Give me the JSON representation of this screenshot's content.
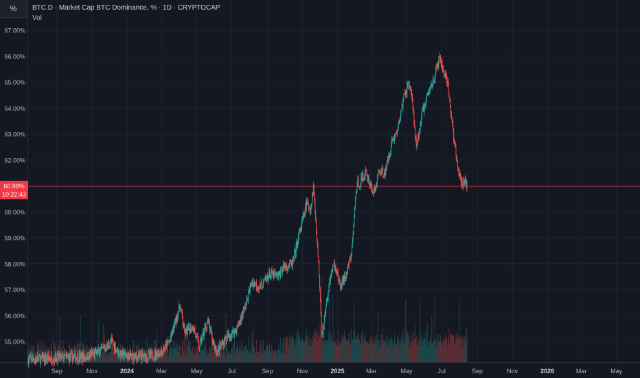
{
  "header": {
    "symbol_box": "%",
    "title": "BTC.D · Market Cap BTC Dominance, % · 1D · CRYPTOCAP",
    "volume_label": "Vol"
  },
  "last_price": {
    "value": "60.98%",
    "countdown": "10:22:43"
  },
  "colors": {
    "background": "#141823",
    "up": "#26a69a",
    "down": "#ef5350",
    "price_line": "#f23645",
    "grid": "#1f2430"
  },
  "chart_data": {
    "type": "candlestick",
    "title": "BTC.D · Market Cap BTC Dominance, % · 1D · CRYPTOCAP",
    "y_axis_side": "left",
    "y_ticks": [
      "67.00%",
      "66.00%",
      "65.00%",
      "64.00%",
      "63.00%",
      "62.00%",
      "61.00%",
      "60.00%",
      "59.00%",
      "58.00%",
      "57.00%",
      "56.00%",
      "55.00%"
    ],
    "y_tick_values": [
      67,
      66,
      65,
      64,
      63,
      62,
      61,
      60,
      59,
      58,
      57,
      56,
      55
    ],
    "ylim": [
      54.3,
      67.6
    ],
    "x_ticks": [
      "Sep",
      "Nov",
      "2024",
      "Mar",
      "May",
      "Jul",
      "Sep",
      "Nov",
      "2025",
      "Mar",
      "May",
      "Jul",
      "Sep",
      "Nov",
      "2026",
      "Mar",
      "May"
    ],
    "x_tick_dates": [
      "2023-09-01",
      "2023-11-01",
      "2024-01-01",
      "2024-03-01",
      "2024-05-01",
      "2024-07-01",
      "2024-09-01",
      "2024-11-01",
      "2025-01-01",
      "2025-03-01",
      "2025-05-01",
      "2025-07-01",
      "2025-09-01",
      "2025-11-01",
      "2026-01-01",
      "2026-03-01",
      "2026-05-01"
    ],
    "bold_x_ticks": [
      "2024",
      "2025",
      "2026"
    ],
    "xlim": [
      "2023-07-13",
      "2026-06-11"
    ],
    "last_value": 60.98,
    "series": [
      {
        "value_points": [
          [
            "2023-07-13",
            54.3
          ],
          [
            "2023-08-15",
            54.35
          ],
          [
            "2023-09-20",
            54.4
          ],
          [
            "2023-10-20",
            54.4
          ],
          [
            "2023-11-15",
            54.6
          ],
          [
            "2023-12-05",
            55.0
          ],
          [
            "2023-12-20",
            54.5
          ],
          [
            "2024-01-15",
            54.4
          ],
          [
            "2024-02-10",
            54.45
          ],
          [
            "2024-03-01",
            54.6
          ],
          [
            "2024-03-15",
            55.0
          ],
          [
            "2024-04-02",
            56.4
          ],
          [
            "2024-04-10",
            55.3
          ],
          [
            "2024-04-25",
            55.6
          ],
          [
            "2024-05-05",
            54.8
          ],
          [
            "2024-05-20",
            55.8
          ],
          [
            "2024-05-28",
            55.1
          ],
          [
            "2024-06-05",
            54.6
          ],
          [
            "2024-06-20",
            55.1
          ],
          [
            "2024-07-10",
            55.5
          ],
          [
            "2024-07-25",
            56.4
          ],
          [
            "2024-08-05",
            57.3
          ],
          [
            "2024-08-20",
            57.1
          ],
          [
            "2024-09-05",
            57.6
          ],
          [
            "2024-09-20",
            57.5
          ],
          [
            "2024-09-30",
            57.9
          ],
          [
            "2024-10-15",
            58.0
          ],
          [
            "2024-10-25",
            59.0
          ],
          [
            "2024-11-08",
            60.3
          ],
          [
            "2024-11-15",
            60.1
          ],
          [
            "2024-11-20",
            61.0
          ],
          [
            "2024-11-25",
            59.4
          ],
          [
            "2024-11-30",
            57.6
          ],
          [
            "2024-12-05",
            55.3
          ],
          [
            "2024-12-10",
            56.0
          ],
          [
            "2024-12-20",
            57.6
          ],
          [
            "2024-12-28",
            58.0
          ],
          [
            "2025-01-05",
            57.1
          ],
          [
            "2025-01-15",
            57.5
          ],
          [
            "2025-01-25",
            58.3
          ],
          [
            "2025-02-03",
            61.0
          ],
          [
            "2025-02-10",
            61.2
          ],
          [
            "2025-02-20",
            61.5
          ],
          [
            "2025-03-05",
            60.7
          ],
          [
            "2025-03-15",
            61.6
          ],
          [
            "2025-03-25",
            61.5
          ],
          [
            "2025-04-05",
            62.7
          ],
          [
            "2025-04-15",
            63.1
          ],
          [
            "2025-04-25",
            64.3
          ],
          [
            "2025-05-05",
            65.0
          ],
          [
            "2025-05-10",
            64.5
          ],
          [
            "2025-05-18",
            62.4
          ],
          [
            "2025-05-28",
            63.8
          ],
          [
            "2025-06-10",
            64.7
          ],
          [
            "2025-06-20",
            65.3
          ],
          [
            "2025-06-27",
            65.9
          ],
          [
            "2025-07-05",
            65.4
          ],
          [
            "2025-07-12",
            64.8
          ],
          [
            "2025-07-20",
            63.3
          ],
          [
            "2025-07-28",
            61.8
          ],
          [
            "2025-08-05",
            61.0
          ],
          [
            "2025-08-10",
            61.3
          ],
          [
            "2025-08-14",
            60.98
          ]
        ]
      }
    ]
  }
}
